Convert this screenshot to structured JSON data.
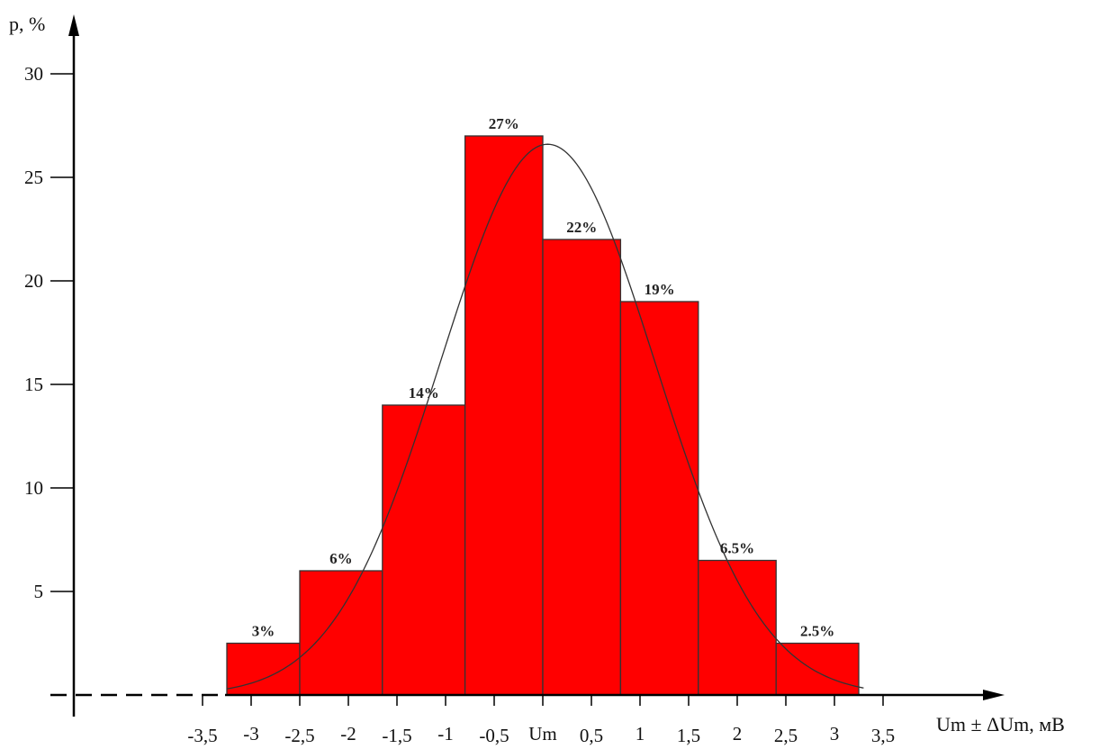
{
  "chart_data": {
    "type": "bar",
    "title": "",
    "ylabel": "p, %",
    "xlabel": "Um ± ΔUm, мВ",
    "ylim": [
      0,
      30
    ],
    "yticks": [
      5,
      10,
      15,
      20,
      25,
      30
    ],
    "xlim": [
      -4,
      4.6
    ],
    "x_ticks": [
      {
        "x": -3.5,
        "label": "-3,5"
      },
      {
        "x": -3,
        "label": "-3"
      },
      {
        "x": -2.5,
        "label": "-2,5"
      },
      {
        "x": -2,
        "label": "-2"
      },
      {
        "x": -1.5,
        "label": "-1,5"
      },
      {
        "x": -1,
        "label": "-1"
      },
      {
        "x": -0.5,
        "label": "-0,5"
      },
      {
        "x": 0,
        "label": "Um"
      },
      {
        "x": 0.5,
        "label": "0,5"
      },
      {
        "x": 1,
        "label": "1"
      },
      {
        "x": 1.5,
        "label": "1,5"
      },
      {
        "x": 2,
        "label": "2"
      },
      {
        "x": 2.5,
        "label": "2,5"
      },
      {
        "x": 3,
        "label": "3"
      },
      {
        "x": 3.5,
        "label": "3,5"
      }
    ],
    "bars": [
      {
        "x0": -3.25,
        "x1": -2.5,
        "value": 2.5,
        "label": "3%"
      },
      {
        "x0": -2.5,
        "x1": -1.65,
        "value": 6,
        "label": "6%"
      },
      {
        "x0": -1.65,
        "x1": -0.8,
        "value": 14,
        "label": "14%"
      },
      {
        "x0": -0.8,
        "x1": 0,
        "value": 27,
        "label": "27%"
      },
      {
        "x0": 0,
        "x1": 0.8,
        "value": 22,
        "label": "22%"
      },
      {
        "x0": 0.8,
        "x1": 1.6,
        "value": 19,
        "label": "19%"
      },
      {
        "x0": 1.6,
        "x1": 2.4,
        "value": 6.5,
        "label": "6.5%"
      },
      {
        "x0": 2.4,
        "x1": 3.25,
        "value": 2.5,
        "label": "2.5%"
      }
    ],
    "curve": {
      "type": "normal",
      "mean": 0.05,
      "sd": 1.1,
      "peak": 26.6
    },
    "bar_color": "#ff0000",
    "grid": false,
    "legend": "none"
  }
}
